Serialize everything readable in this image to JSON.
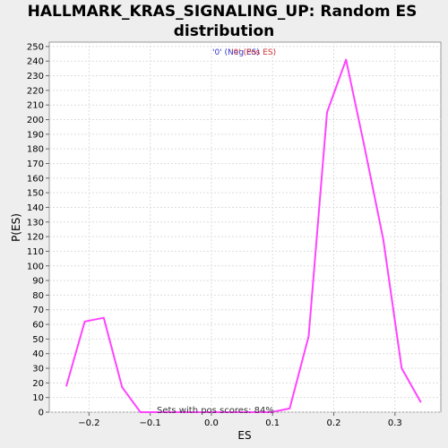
{
  "chart_data": {
    "type": "line",
    "title_line1": "HALLMARK_KRAS_SIGNALING_UP: Random ES",
    "title_line2": "distribution",
    "xlabel": "ES",
    "ylabel": "P(ES)",
    "xlim": [
      -0.265,
      0.375
    ],
    "ylim": [
      0,
      253
    ],
    "x_ticks": [
      -0.2,
      -0.1,
      0.0,
      0.1,
      0.2,
      0.3
    ],
    "x_tick_labels": [
      "−0.2",
      "−0.1",
      "0.0",
      "0.1",
      "0.2",
      "0.3"
    ],
    "y_ticks": [
      0,
      10,
      20,
      30,
      40,
      50,
      60,
      70,
      80,
      90,
      100,
      110,
      120,
      130,
      140,
      150,
      160,
      170,
      180,
      190,
      200,
      210,
      220,
      230,
      240,
      250
    ],
    "grid": true,
    "legend": {
      "placement": "top-center",
      "neg_label": "'0' (Neg ES)",
      "pos_label": "'0' (Pos ES)",
      "neg_color": "#3333cc",
      "pos_color": "#cc3333"
    },
    "annotation": "Sets with pos scores: 84%",
    "series": [
      {
        "color": "#ff44ff",
        "x": [
          -0.237,
          -0.207,
          -0.176,
          -0.146,
          -0.116,
          -0.085,
          -0.055,
          -0.024,
          0.006,
          0.037,
          0.067,
          0.098,
          0.128,
          0.159,
          0.189,
          0.22,
          0.25,
          0.281,
          0.311,
          0.342
        ],
        "y": [
          18,
          62,
          64.5,
          17,
          0,
          0,
          0,
          0,
          0,
          0,
          0,
          0,
          2.5,
          52,
          205,
          241,
          182,
          118,
          30,
          7
        ]
      }
    ]
  }
}
